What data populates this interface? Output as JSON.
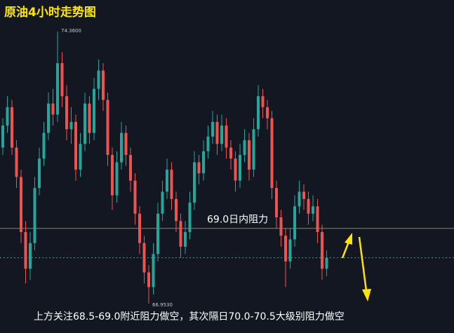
{
  "chart_data": {
    "type": "candlestick",
    "title": "原油4小时走势图",
    "note": "上方关注68.5-69.0附近阻力做空，其次隔日70.0-70.5大级别阻力做空",
    "up_color": "#26a69a",
    "down_color": "#ef5350",
    "ylim": [
      66.15,
      75.22
    ],
    "open": [
      71.2,
      71.8,
      72.3,
      71.2,
      70.4,
      68.9,
      67.9,
      68.6,
      70.1,
      70.9,
      71.6,
      72.4,
      72.1,
      73.5,
      72.6,
      71.7,
      71.9,
      70.6,
      71.3,
      72.4,
      71.6,
      72.8,
      73.3,
      72.5,
      71.0,
      69.9,
      70.8,
      71.6,
      71.0,
      70.3,
      69.4,
      68.6,
      67.8,
      67.4,
      68.3,
      69.4,
      70.0,
      70.6,
      69.8,
      69.2,
      68.5,
      68.9,
      69.7,
      70.8,
      70.5,
      71.1,
      71.5,
      71.9,
      71.3,
      71.8,
      71.2,
      70.9,
      70.3,
      71.0,
      71.4,
      70.6,
      71.7,
      72.6,
      72.3,
      72.0,
      70.1,
      69.3,
      68.8,
      68.1,
      68.7,
      69.6,
      70.0,
      69.8,
      69.4,
      69.6,
      68.9,
      67.9
    ],
    "high": [
      72.0,
      72.6,
      72.5,
      71.4,
      70.6,
      69.2,
      68.9,
      70.4,
      71.2,
      71.9,
      72.7,
      72.8,
      74.36,
      73.8,
      72.9,
      72.3,
      72.1,
      71.6,
      72.7,
      72.6,
      73.1,
      73.6,
      73.5,
      72.7,
      71.2,
      71.1,
      71.9,
      71.8,
      71.2,
      70.5,
      69.6,
      68.8,
      68.0,
      68.6,
      69.7,
      70.3,
      70.9,
      70.8,
      70.0,
      69.4,
      69.2,
      70.0,
      71.1,
      71.0,
      71.4,
      71.8,
      72.2,
      72.1,
      72.1,
      72.0,
      71.4,
      71.1,
      71.3,
      71.7,
      71.6,
      72.0,
      72.9,
      72.8,
      72.5,
      72.2,
      70.3,
      69.5,
      69.0,
      69.0,
      69.9,
      70.3,
      70.2,
      70.0,
      69.9,
      69.8,
      69.1,
      68.4
    ],
    "low": [
      71.0,
      71.6,
      71.0,
      70.1,
      68.6,
      67.5,
      67.6,
      68.4,
      69.9,
      70.7,
      71.4,
      71.8,
      71.9,
      72.3,
      71.4,
      71.3,
      70.3,
      70.4,
      71.1,
      71.3,
      71.4,
      72.5,
      72.2,
      70.7,
      69.5,
      69.7,
      70.6,
      70.7,
      70.0,
      69.1,
      68.3,
      67.5,
      66.953,
      67.2,
      68.1,
      69.2,
      69.8,
      69.5,
      68.9,
      68.2,
      68.3,
      68.7,
      69.5,
      70.2,
      70.3,
      70.9,
      71.3,
      71.0,
      71.1,
      70.9,
      70.6,
      70.0,
      70.1,
      70.8,
      70.3,
      70.4,
      71.5,
      72.0,
      71.7,
      69.8,
      69.0,
      68.5,
      67.4,
      67.9,
      68.5,
      69.4,
      69.5,
      69.1,
      69.2,
      68.6,
      67.6,
      67.7
    ],
    "close": [
      71.8,
      72.3,
      71.2,
      70.4,
      68.9,
      67.9,
      68.6,
      70.1,
      70.9,
      71.6,
      72.4,
      72.1,
      73.5,
      72.6,
      71.7,
      71.9,
      70.6,
      71.3,
      72.4,
      71.6,
      72.8,
      73.3,
      72.5,
      71.0,
      69.9,
      70.8,
      71.6,
      71.0,
      70.3,
      69.4,
      68.6,
      67.8,
      67.4,
      68.3,
      69.4,
      70.0,
      70.6,
      69.8,
      69.2,
      68.5,
      68.9,
      69.7,
      70.8,
      70.5,
      71.1,
      71.5,
      71.9,
      71.3,
      71.8,
      71.2,
      70.9,
      70.3,
      71.0,
      71.4,
      70.6,
      71.7,
      72.6,
      72.3,
      72.0,
      70.1,
      69.3,
      68.8,
      68.1,
      68.7,
      69.6,
      70.0,
      69.8,
      69.4,
      69.6,
      68.9,
      67.9,
      68.2
    ],
    "annotations": [
      {
        "value": 74.36,
        "label": "74.3600"
      },
      {
        "value": 66.953,
        "label": "66.9530"
      }
    ],
    "resistance": {
      "value": 69.0,
      "label": "69.0日内阻力"
    },
    "price_line": 68.2
  }
}
